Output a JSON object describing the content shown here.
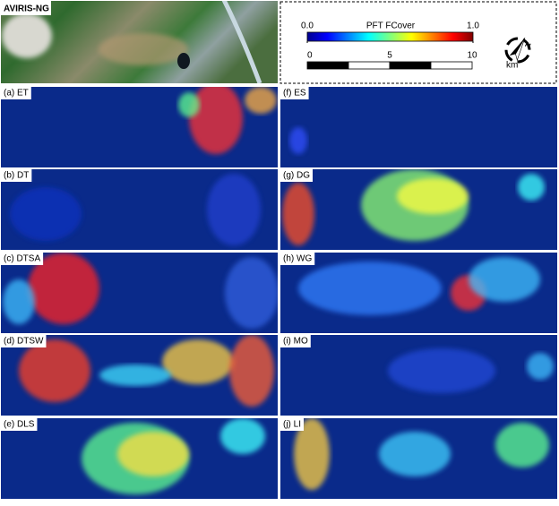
{
  "header": {
    "title": "AVIRIS-NG"
  },
  "colorbar": {
    "title": "PFT FCover",
    "ticks": [
      {
        "value": 0,
        "label": "0.0"
      },
      {
        "value": 1,
        "label": "1.0"
      }
    ]
  },
  "scalebar": {
    "ticks": [
      0,
      5,
      10
    ],
    "unit": "km"
  },
  "panels": [
    {
      "label": "(a) ET"
    },
    {
      "label": "(b) DT"
    },
    {
      "label": "(c) DTSA"
    },
    {
      "label": "(d) DTSW"
    },
    {
      "label": "(e) DLS"
    },
    {
      "label": "(f) ES"
    },
    {
      "label": "(g) DG"
    },
    {
      "label": "(h) WG"
    },
    {
      "label": "(i) MO"
    },
    {
      "label": "(j) LI"
    }
  ]
}
